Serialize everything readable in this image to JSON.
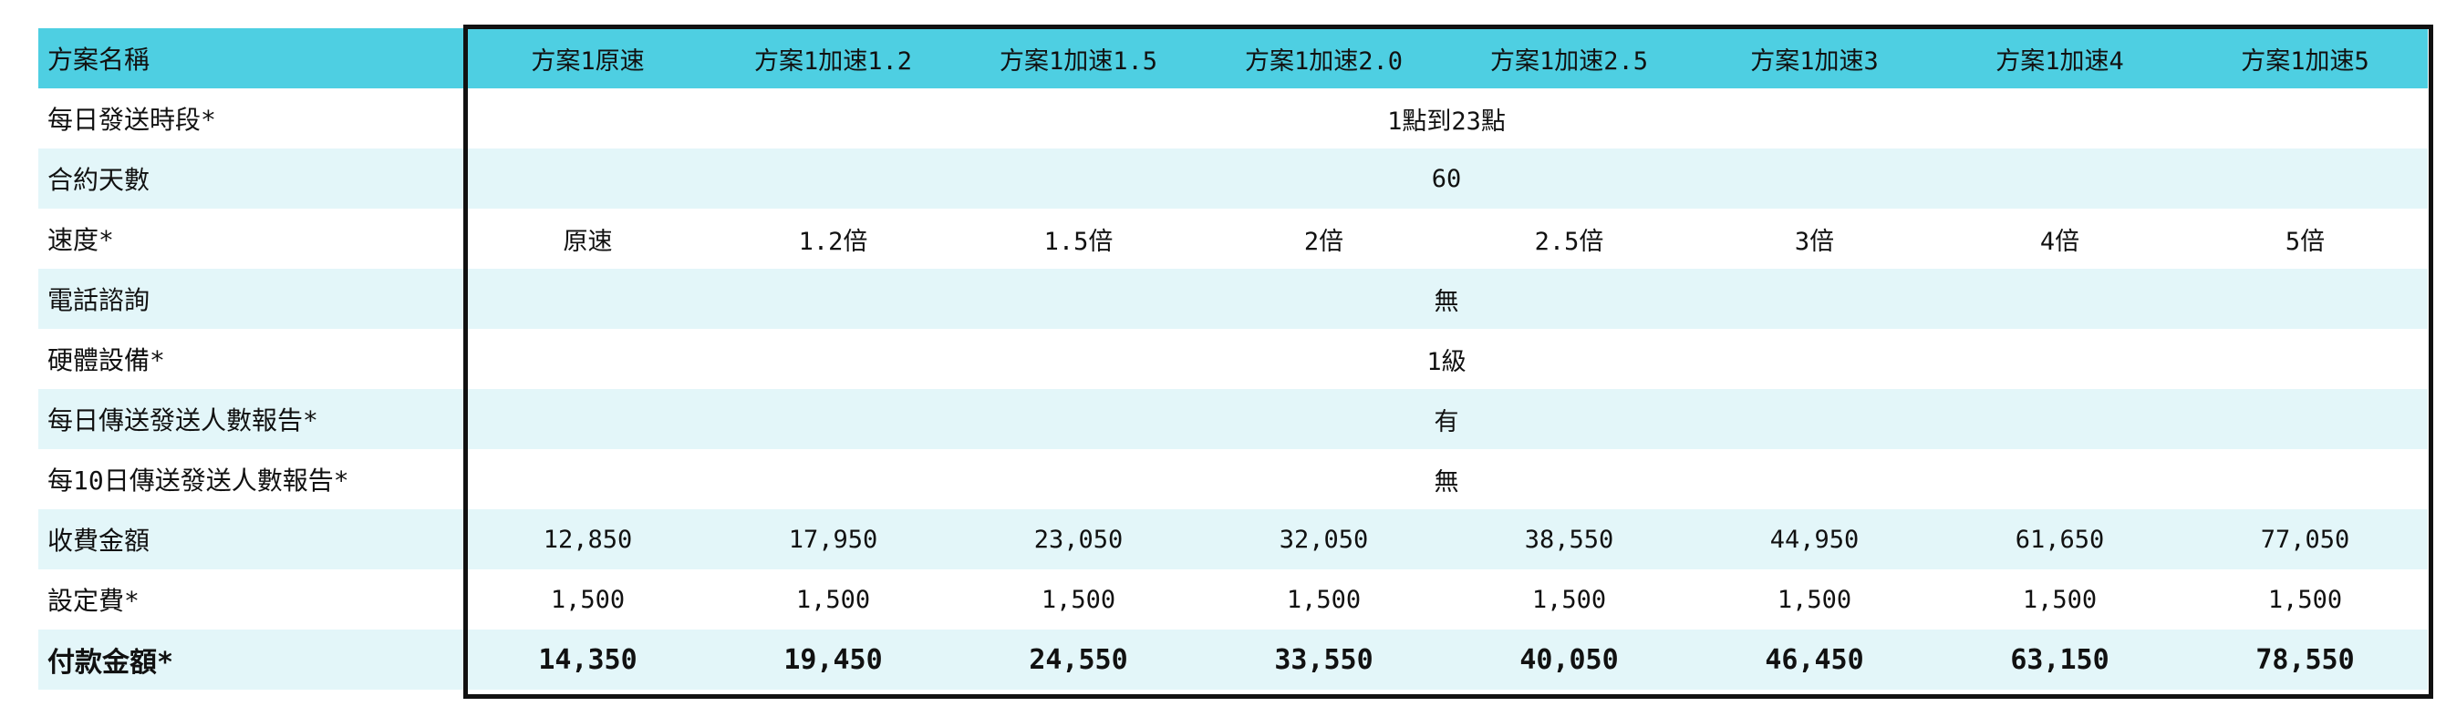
{
  "header": {
    "label": "方案名稱",
    "plans": [
      "方案1原速",
      "方案1加速1.2",
      "方案1加速1.5",
      "方案1加速2.0",
      "方案1加速2.5",
      "方案1加速3",
      "方案1加速4",
      "方案1加速5"
    ]
  },
  "rows": {
    "send_period": {
      "label": "每日發送時段*",
      "value": "1點到23點"
    },
    "contract_days": {
      "label": "合約天數",
      "value": "60"
    },
    "speed": {
      "label": "速度*",
      "values": [
        "原速",
        "1.2倍",
        "1.5倍",
        "2倍",
        "2.5倍",
        "3倍",
        "4倍",
        "5倍"
      ]
    },
    "phone_consult": {
      "label": "電話諮詢",
      "value": "無"
    },
    "hardware": {
      "label": "硬體設備*",
      "value": "1級"
    },
    "daily_report": {
      "label": "每日傳送發送人數報告*",
      "value": "有"
    },
    "ten_day_report": {
      "label": "每10日傳送發送人數報告*",
      "value": "無"
    },
    "fee": {
      "label": "收費金額",
      "values": [
        "12,850",
        "17,950",
        "23,050",
        "32,050",
        "38,550",
        "44,950",
        "61,650",
        "77,050"
      ]
    },
    "setup_fee": {
      "label": "設定費*",
      "values": [
        "1,500",
        "1,500",
        "1,500",
        "1,500",
        "1,500",
        "1,500",
        "1,500",
        "1,500"
      ]
    },
    "total": {
      "label": "付款金額*",
      "values": [
        "14,350",
        "19,450",
        "24,550",
        "33,550",
        "40,050",
        "46,450",
        "63,150",
        "78,550"
      ]
    }
  },
  "colors": {
    "header_bg": "#4ecfe2",
    "alt_row_bg": "#e3f6f9",
    "frame": "#111111"
  }
}
